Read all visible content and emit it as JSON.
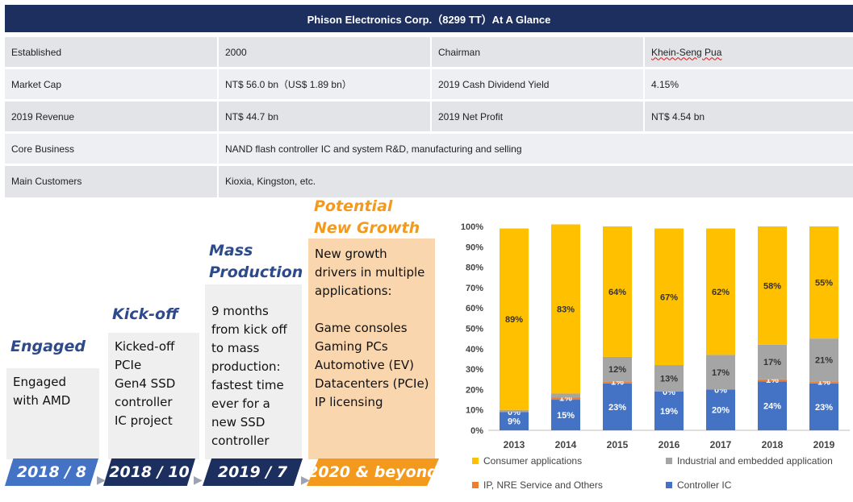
{
  "header": {
    "title": "Phison Electronics Corp.（8299 TT）At A Glance"
  },
  "info": {
    "rows": [
      {
        "label1": "Established",
        "value1": "2000",
        "label2": "Chairman",
        "value2": "Khein-Seng Pua"
      },
      {
        "label1": "Market Cap",
        "value1": "NT$ 56.0 bn（US$ 1.89 bn）",
        "label2": "2019 Cash Dividend Yield",
        "value2": "4.15%"
      },
      {
        "label1": "2019 Revenue",
        "value1": "NT$ 44.7 bn",
        "label2": "2019 Net Profit",
        "value2": "NT$ 4.54 bn"
      }
    ],
    "core_business": {
      "label": "Core Business",
      "value": "NAND flash controller IC and system R&D, manufacturing and selling"
    },
    "main_customers": {
      "label": "Main Customers",
      "value": "Kioxia, Kingston, etc."
    }
  },
  "timeline": {
    "stages": [
      {
        "heading": [
          "Engaged"
        ],
        "body": [
          "Engaged",
          "with AMD"
        ],
        "date": "2018 / 8"
      },
      {
        "heading": [
          "Kick-off"
        ],
        "body": [
          "Kicked-off",
          "PCIe",
          "Gen4 SSD",
          "controller",
          "IC project"
        ],
        "date": "2018 / 10"
      },
      {
        "heading": [
          "Mass",
          "Production"
        ],
        "body": [
          "9 months",
          "from kick off",
          "to mass",
          "production:",
          "fastest time",
          "ever for a",
          "new SSD",
          "controller"
        ],
        "date": "2019 / 7"
      },
      {
        "heading": [
          "Potential",
          "New Growth"
        ],
        "body": [
          "New growth",
          "drivers in multiple",
          "applications:",
          "",
          "Game consoles",
          "Gaming PCs",
          "Automotive (EV)",
          "Datacenters (PCIe)",
          "IP licensing"
        ],
        "date": "2020 & beyond"
      }
    ],
    "colors": {
      "dark_blue": "#1c2f5e",
      "mid_blue": "#4472c4",
      "orange": "#f39a1e"
    },
    "arrow_icon": "▶"
  },
  "chart_data": {
    "type": "bar",
    "stacked": true,
    "percent": true,
    "categories": [
      "2013",
      "2014",
      "2015",
      "2016",
      "2017",
      "2018",
      "2019"
    ],
    "ylim": [
      0,
      100
    ],
    "yticks": [
      "0%",
      "10%",
      "20%",
      "30%",
      "40%",
      "50%",
      "60%",
      "70%",
      "80%",
      "90%",
      "100%"
    ],
    "grid": false,
    "legend_position": "bottom",
    "series": [
      {
        "name": "Controller IC",
        "color": "#4472c4",
        "values": [
          9,
          15,
          23,
          19,
          20,
          24,
          23
        ],
        "labels": [
          "9%",
          "15%",
          "23%",
          "19%",
          "20%",
          "24%",
          "23%"
        ]
      },
      {
        "name": "IP, NRE Service and Others",
        "color": "#ed7d31",
        "values": [
          0,
          1,
          1,
          0,
          0,
          1,
          1
        ],
        "labels": [
          "0%",
          "1%",
          "1%",
          "0%",
          "0%",
          "1%",
          "1%"
        ]
      },
      {
        "name": "Industrial and embedded application",
        "color": "#a5a5a5",
        "values": [
          1,
          2,
          12,
          13,
          17,
          17,
          21
        ],
        "labels": [
          "1%",
          "2%",
          "12%",
          "13%",
          "17%",
          "17%",
          "21%"
        ]
      },
      {
        "name": "Consumer applications",
        "color": "#ffc000",
        "values": [
          89,
          83,
          64,
          67,
          62,
          58,
          55
        ],
        "labels": [
          "89%",
          "83%",
          "64%",
          "67%",
          "62%",
          "58%",
          "55%"
        ]
      }
    ]
  }
}
